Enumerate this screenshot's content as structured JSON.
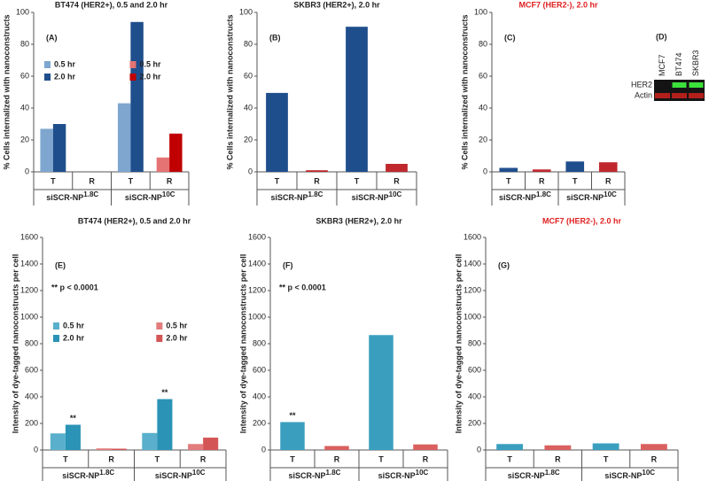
{
  "chart_data": [
    {
      "type": "bar",
      "label": "(A)",
      "title": "BT474 (HER2+), 0.5 and 2.0 hr",
      "ylabel": "% Cells internalized with nanoconstructs",
      "categories": [
        "T",
        "R",
        "T",
        "R"
      ],
      "groups": [
        {
          "name": "siSCR-NP",
          "sup": "1.8C"
        },
        {
          "name": "siSCR-NP",
          "sup": "10C"
        }
      ],
      "series": [
        {
          "name": "0.5 hr",
          "color": "#7ea6cf",
          "values": [
            27,
            null,
            43,
            null
          ]
        },
        {
          "name": "2.0 hr",
          "color": "#1f4e8c",
          "values": [
            30,
            null,
            94,
            null
          ]
        },
        {
          "name": "0.5 hr",
          "color": "#e57373",
          "values": [
            null,
            0,
            null,
            9
          ]
        },
        {
          "name": "2.0 hr",
          "color": "#c00000",
          "values": [
            null,
            0,
            null,
            24
          ]
        }
      ],
      "ylim": [
        0,
        100
      ],
      "yticks": [
        0,
        20,
        40,
        60,
        80,
        100
      ]
    },
    {
      "type": "bar",
      "label": "(B)",
      "title": "SKBR3 (HER2+), 2.0 hr",
      "ylabel": "% Cells internalized with nanoconstructs",
      "categories": [
        "T",
        "R",
        "T",
        "R"
      ],
      "groups": [
        {
          "name": "siSCR-NP",
          "sup": "1.8C"
        },
        {
          "name": "siSCR-NP",
          "sup": "10C"
        }
      ],
      "series": [
        {
          "color": "#1f4e8c",
          "values": [
            49.5,
            null,
            91,
            null
          ]
        },
        {
          "color": "#c0282d",
          "values": [
            null,
            1,
            null,
            5
          ]
        }
      ],
      "ylim": [
        0,
        100
      ],
      "yticks": [
        0,
        20,
        40,
        60,
        80,
        100
      ]
    },
    {
      "type": "bar",
      "label": "(C)",
      "title": "MCF7 (HER2-), 2.0 hr",
      "title_color": "#e02020",
      "ylabel": "% Cells internalized with nanoconstructs",
      "categories": [
        "T",
        "R",
        "T",
        "R"
      ],
      "groups": [
        {
          "name": "siSCR-NP",
          "sup": "1.8C"
        },
        {
          "name": "siSCR-NP",
          "sup": "10C"
        }
      ],
      "series": [
        {
          "color": "#1f4e8c",
          "values": [
            2.5,
            null,
            6.5,
            null
          ]
        },
        {
          "color": "#c0282d",
          "values": [
            null,
            1.5,
            null,
            6
          ]
        }
      ],
      "ylim": [
        0,
        100
      ],
      "yticks": [
        0,
        20,
        40,
        60,
        80,
        100
      ]
    },
    {
      "type": "blot",
      "label": "(D)",
      "lanes": [
        "MCF7",
        "BT474",
        "SKBR3"
      ],
      "rows": [
        "HER2",
        "Actin"
      ]
    },
    {
      "type": "bar",
      "label": "(E)",
      "title": "BT474 (HER2+), 0.5 and 2.0 hr",
      "ylabel": "Intensity of dye-tagged nanoconstructs per cell",
      "annotation": "** p < 0.0001",
      "categories": [
        "T",
        "R",
        "T",
        "R"
      ],
      "groups": [
        {
          "name": "siSCR-NP",
          "sup": "1.8C"
        },
        {
          "name": "siSCR-NP",
          "sup": "10C"
        }
      ],
      "series": [
        {
          "name": "0.5 hr",
          "color": "#5ab0cc",
          "values": [
            125,
            null,
            128,
            null
          ]
        },
        {
          "name": "2.0 hr",
          "color": "#2b93b5",
          "values": [
            190,
            null,
            383,
            null
          ],
          "significance": [
            "**",
            null,
            "**",
            null
          ]
        },
        {
          "name": "0.5 hr",
          "color": "#e37c7c",
          "values": [
            null,
            12,
            null,
            45
          ]
        },
        {
          "name": "2.0 hr",
          "color": "#d45555",
          "values": [
            null,
            10,
            null,
            93
          ]
        }
      ],
      "ylim": [
        0,
        1600
      ],
      "yticks": [
        0,
        200,
        400,
        600,
        800,
        1000,
        1200,
        1400,
        1600
      ]
    },
    {
      "type": "bar",
      "label": "(F)",
      "title": "SKBR3 (HER2+), 2.0 hr",
      "ylabel": "Intensity of dye-tagged nanoconstructs per cell",
      "annotation": "** p < 0.0001",
      "categories": [
        "T",
        "R",
        "T",
        "R"
      ],
      "groups": [
        {
          "name": "siSCR-NP",
          "sup": "1.8C"
        },
        {
          "name": "siSCR-NP",
          "sup": "10C"
        }
      ],
      "series": [
        {
          "color": "#3a9fbf",
          "values": [
            210,
            null,
            865,
            null
          ],
          "significance": [
            "**",
            null,
            null,
            null
          ]
        },
        {
          "color": "#d9605f",
          "values": [
            null,
            30,
            null,
            42
          ]
        }
      ],
      "ylim": [
        0,
        1600
      ],
      "yticks": [
        0,
        200,
        400,
        600,
        800,
        1000,
        1200,
        1400,
        1600
      ]
    },
    {
      "type": "bar",
      "label": "(G)",
      "title": "MCF7 (HER2-), 2.0 hr",
      "title_color": "#e02020",
      "ylabel": "Intensity of dye-tagged nanoconstructs per cell",
      "categories": [
        "T",
        "R",
        "T",
        "R"
      ],
      "groups": [
        {
          "name": "siSCR-NP",
          "sup": "1.8C"
        },
        {
          "name": "siSCR-NP",
          "sup": "10C"
        }
      ],
      "series": [
        {
          "color": "#3a9fbf",
          "values": [
            45,
            null,
            50,
            null
          ]
        },
        {
          "color": "#d9605f",
          "values": [
            null,
            35,
            null,
            45
          ]
        }
      ],
      "ylim": [
        0,
        1600
      ],
      "yticks": [
        0,
        200,
        400,
        600,
        800,
        1000,
        1200,
        1400,
        1600
      ]
    }
  ]
}
